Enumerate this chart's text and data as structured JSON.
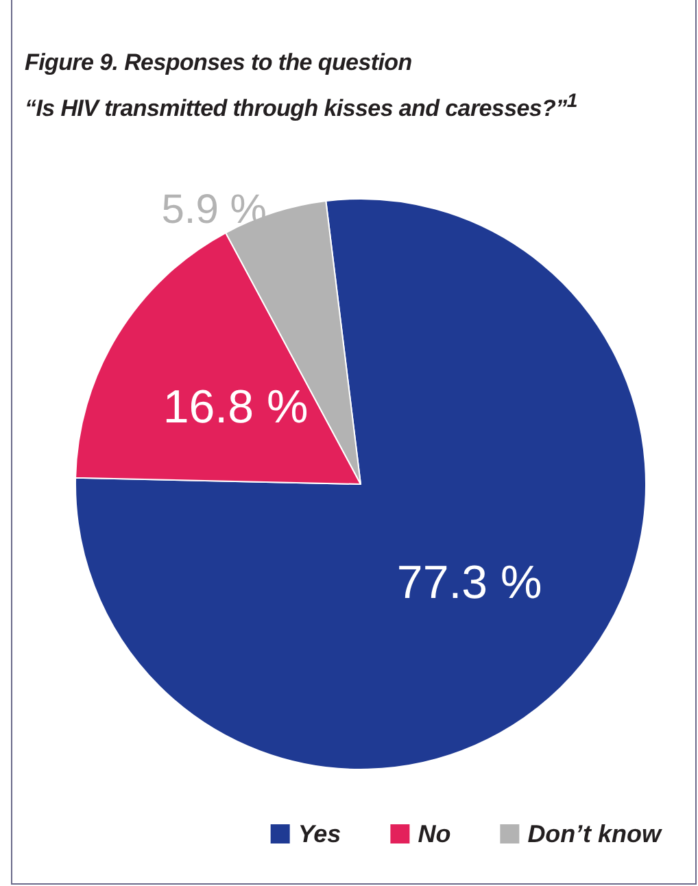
{
  "chart_data": {
    "type": "pie",
    "title": "Figure 9. Responses to the question",
    "subtitle": "“Is HIV transmitted through kisses and caresses?”$^{1}$",
    "categories": [
      "Yes",
      "No",
      "Don’t know"
    ],
    "values": [
      77.3,
      16.8,
      5.9
    ],
    "colors": [
      "#1f3a93",
      "#e3215b",
      "#b3b3b3"
    ],
    "value_labels": [
      "77.3 %",
      "16.8 %",
      "5.9 %"
    ],
    "legend": "bottom right"
  }
}
